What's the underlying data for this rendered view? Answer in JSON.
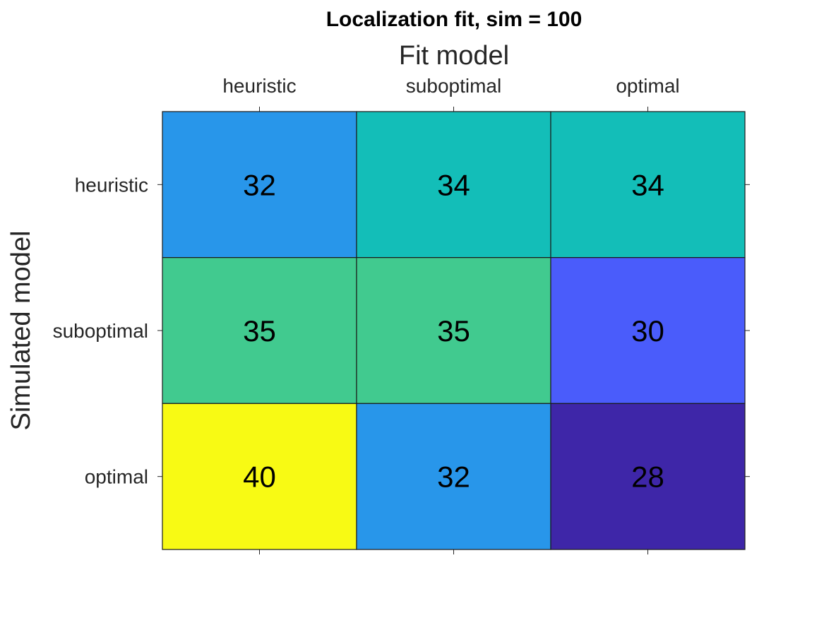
{
  "chart_data": {
    "type": "heatmap",
    "title": "Localization fit, sim = 100",
    "xlabel": "Fit model",
    "ylabel": "Simulated model",
    "x_categories": [
      "heuristic",
      "suboptimal",
      "optimal"
    ],
    "y_categories": [
      "heuristic",
      "suboptimal",
      "optimal"
    ],
    "values": [
      [
        32,
        34,
        34
      ],
      [
        35,
        35,
        30
      ],
      [
        40,
        32,
        28
      ]
    ],
    "colormap": "parula",
    "color_range": [
      28,
      40
    ],
    "x_axis_location": "top",
    "grid": false
  },
  "colors": {
    "c28": "#3e26a8",
    "c30": "#4a5cfb",
    "c32": "#2896ea",
    "c34": "#13beb8",
    "c35": "#41ca8f",
    "c40": "#f8fa14"
  }
}
